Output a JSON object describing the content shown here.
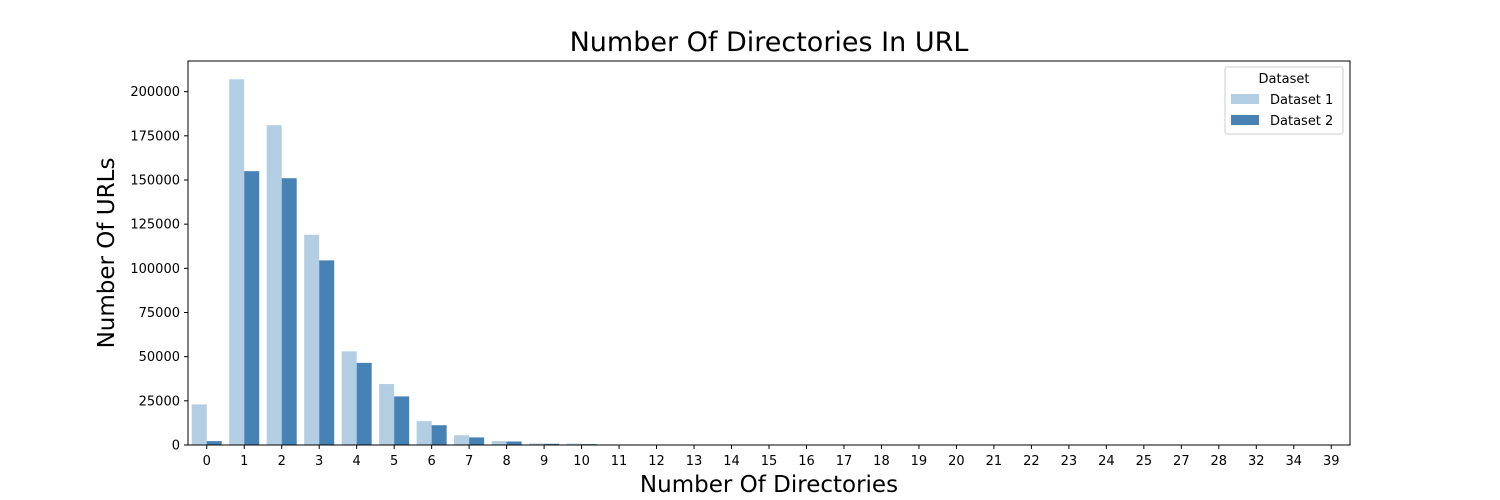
{
  "chart_data": {
    "type": "bar",
    "title": "Number Of Directories In URL",
    "xlabel": "Number Of Directories",
    "ylabel": "Number Of URLs",
    "categories": [
      "0",
      "1",
      "2",
      "3",
      "4",
      "5",
      "6",
      "7",
      "8",
      "9",
      "10",
      "11",
      "12",
      "13",
      "14",
      "15",
      "16",
      "17",
      "18",
      "19",
      "20",
      "21",
      "22",
      "23",
      "24",
      "25",
      "27",
      "28",
      "32",
      "34",
      "39"
    ],
    "series": [
      {
        "name": "Dataset 1",
        "color": "#b3cde3",
        "values": [
          23000,
          207000,
          181000,
          119000,
          53000,
          34500,
          13500,
          5500,
          2200,
          900,
          800,
          300,
          100,
          60,
          40,
          30,
          20,
          15,
          10,
          8,
          6,
          5,
          4,
          3,
          2,
          2,
          1,
          1,
          1,
          1,
          1
        ]
      },
      {
        "name": "Dataset 2",
        "color": "#4682b4",
        "values": [
          2200,
          155000,
          151000,
          104500,
          46500,
          27500,
          11200,
          4300,
          2000,
          700,
          500,
          300,
          100,
          50,
          30,
          20,
          15,
          10,
          8,
          6,
          5,
          4,
          3,
          2,
          2,
          1,
          1,
          1,
          1,
          1,
          1
        ]
      }
    ],
    "ylim": [
      0,
      217350
    ],
    "yticks": [
      0,
      25000,
      50000,
      75000,
      100000,
      125000,
      150000,
      175000,
      200000
    ],
    "ytick_labels": [
      "0",
      "25000",
      "50000",
      "75000",
      "100000",
      "125000",
      "150000",
      "175000",
      "200000"
    ],
    "legend": {
      "title": "Dataset",
      "position": "top-right"
    },
    "grid": false
  }
}
